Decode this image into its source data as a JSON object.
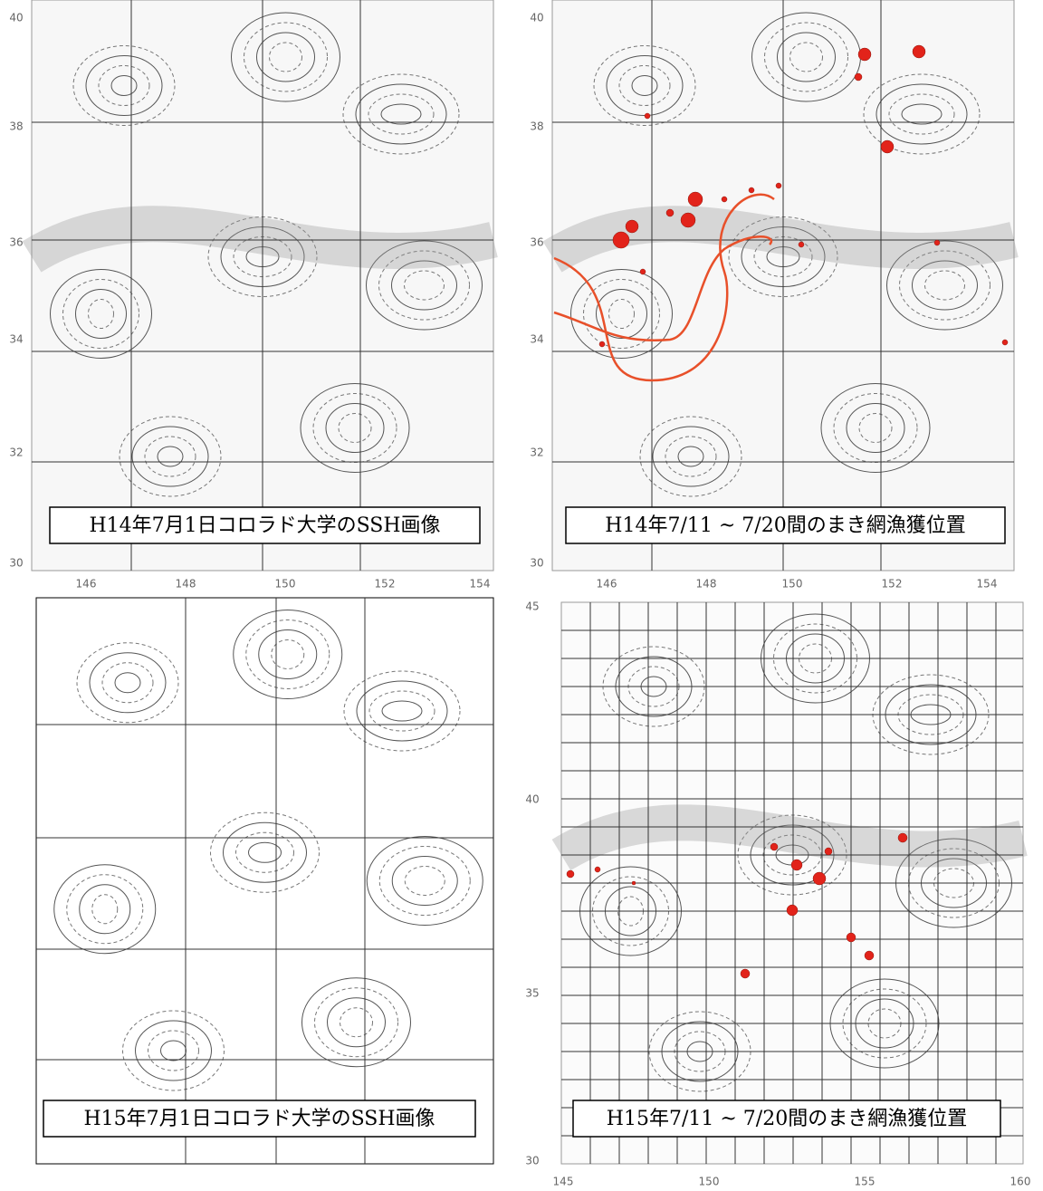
{
  "panels": [
    {
      "caption": "H14年7月1日コロラド大学のSSH画像",
      "y_labels": [
        "40",
        "38",
        "36",
        "34",
        "32",
        "30"
      ],
      "x_labels": [
        "146",
        "148",
        "150",
        "152",
        "154"
      ]
    },
    {
      "caption": "H14年7/11 ~ 7/20間のまき網漁獲位置",
      "y_labels": [
        "40",
        "38",
        "36",
        "34",
        "32",
        "30"
      ],
      "x_labels": [
        "146",
        "148",
        "150",
        "152",
        "154"
      ]
    },
    {
      "caption": "H15年7月1日コロラド大学のSSH画像",
      "y_labels": [],
      "x_labels": []
    },
    {
      "caption": "H15年7/11 ~ 7/20間のまき網漁獲位置",
      "y_labels": [
        "45",
        "40",
        "35",
        "30"
      ],
      "x_labels": [
        "145",
        "150",
        "155",
        "160"
      ]
    }
  ]
}
